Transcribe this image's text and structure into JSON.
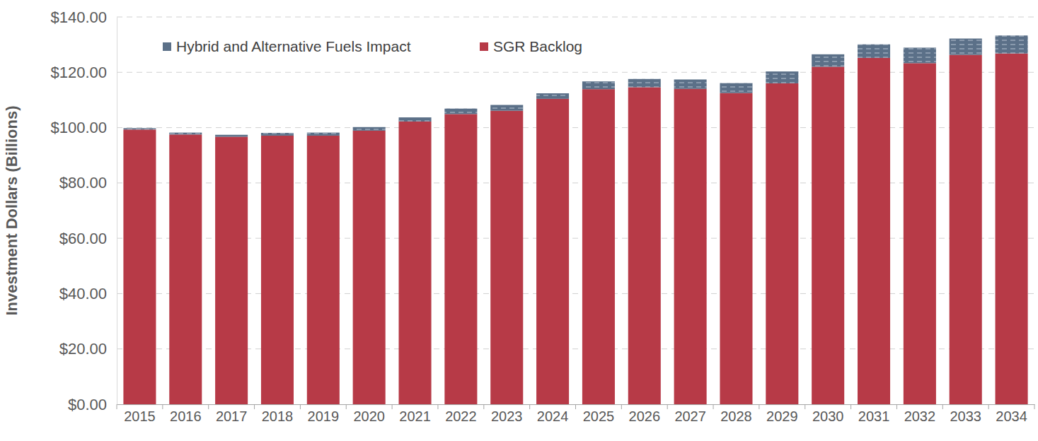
{
  "chart_data": {
    "type": "bar",
    "stacked": true,
    "grid": true,
    "legend": "top-left",
    "y_label": "Investment Dollars (Billions)",
    "categories": [
      "2015",
      "2016",
      "2017",
      "2018",
      "2019",
      "2020",
      "2021",
      "2022",
      "2023",
      "2024",
      "2025",
      "2026",
      "2027",
      "2028",
      "2029",
      "2030",
      "2031",
      "2032",
      "2033",
      "2034"
    ],
    "series": [
      {
        "name": "Hybrid and Alternative Fuels Impact",
        "color": "#5b7088",
        "values": [
          0.5,
          0.7,
          0.7,
          1.0,
          1.1,
          1.3,
          1.5,
          2.0,
          2.1,
          2.0,
          2.8,
          3.0,
          3.4,
          3.6,
          4.3,
          4.5,
          4.9,
          5.6,
          5.9,
          6.5
        ]
      },
      {
        "name": "SGR Backlog",
        "color": "#b73a47",
        "values": [
          99.3,
          97.5,
          96.7,
          97.1,
          97.1,
          98.9,
          102.2,
          104.9,
          106.1,
          110.4,
          113.9,
          114.6,
          114.0,
          112.5,
          116.0,
          122.0,
          125.2,
          123.3,
          126.3,
          126.8
        ]
      }
    ],
    "ylim": [
      0,
      140
    ],
    "yticks": [
      {
        "value": 0,
        "label": "$0.00"
      },
      {
        "value": 20,
        "label": "$20.00"
      },
      {
        "value": 40,
        "label": "$40.00"
      },
      {
        "value": 60,
        "label": "$60.00"
      },
      {
        "value": 80,
        "label": "$80.00"
      },
      {
        "value": 100,
        "label": "$100.00"
      },
      {
        "value": 120,
        "label": "$120.00"
      },
      {
        "value": 140,
        "label": "$140.00"
      }
    ]
  }
}
